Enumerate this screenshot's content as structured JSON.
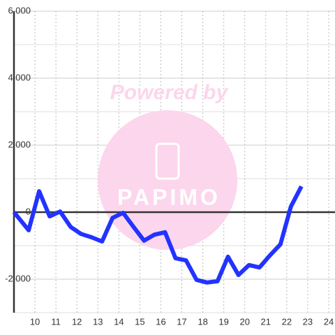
{
  "chart_data": {
    "type": "line",
    "watermark": {
      "line1": "Powered by",
      "line2": "PAPIMO"
    },
    "x": [
      9,
      9.7,
      10.2,
      10.7,
      11.2,
      11.7,
      12.2,
      12.7,
      13.2,
      13.7,
      14.2,
      14.7,
      15.2,
      15.7,
      16.2,
      16.7,
      17.2,
      17.7,
      18.2,
      18.7,
      19.2,
      19.7,
      20.2,
      20.7,
      21.2,
      21.7,
      22.2,
      22.7
    ],
    "series": [
      {
        "color": "#2233ff",
        "values": [
          0,
          -540,
          625,
          -125,
          20,
          -440,
          -650,
          -750,
          -875,
          -170,
          -20,
          -440,
          -850,
          -670,
          -600,
          -1375,
          -1440,
          -2020,
          -2100,
          -2060,
          -1330,
          -1875,
          -1580,
          -1650,
          -1290,
          -960,
          170,
          770
        ]
      }
    ],
    "xlim": [
      9,
      24.3
    ],
    "xticks": [
      10,
      11,
      12,
      13,
      14,
      15,
      16,
      17,
      18,
      19,
      20,
      21,
      22,
      23,
      24
    ],
    "ylim": [
      -3000,
      6000
    ],
    "yticks": [
      {
        "value": -2000,
        "label": "-2,000"
      },
      0,
      {
        "value": 2000,
        "label": "2,000"
      },
      {
        "value": 4000,
        "label": "4,000"
      },
      {
        "value": 6000,
        "label": "6,000"
      }
    ],
    "y_minor_grid": [
      -3000,
      -1000,
      1000,
      3000,
      5000
    ],
    "grid": true
  }
}
